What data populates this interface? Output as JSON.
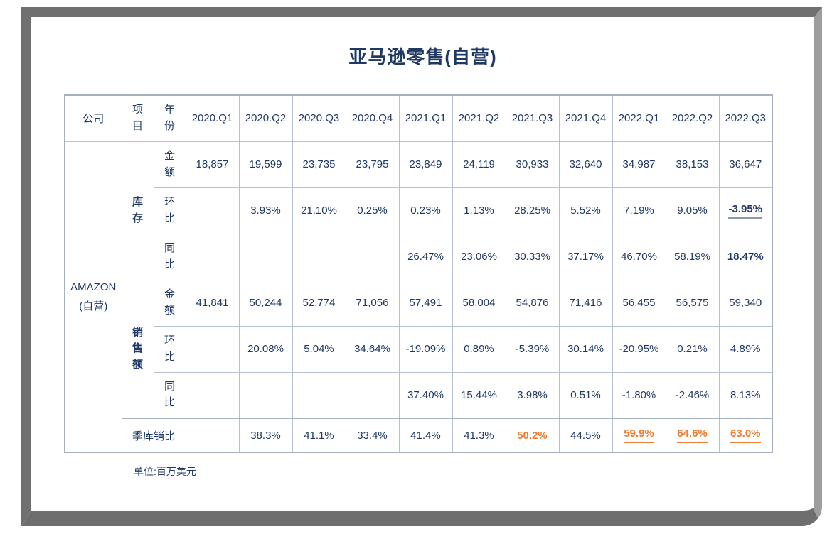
{
  "page": {
    "title": "亚马逊零售(自营)",
    "footnote": "单位:百万美元"
  },
  "colors": {
    "navy": "#1F3864",
    "orange": "#ED7D31",
    "grid": "#B6C1CF",
    "frame": "#707070"
  },
  "table": {
    "header": {
      "company": "公司",
      "item": "项目",
      "year": "年份",
      "quarters": [
        "2020.Q1",
        "2020.Q2",
        "2020.Q3",
        "2020.Q4",
        "2021.Q1",
        "2021.Q2",
        "2021.Q3",
        "2021.Q4",
        "2022.Q1",
        "2022.Q2",
        "2022.Q3"
      ]
    },
    "body": {
      "company": {
        "line1": "AMAZON",
        "line2": "(自营)"
      },
      "rows": [
        {
          "section": "库存",
          "label": "金额",
          "values": [
            "18,857",
            "19,599",
            "23,735",
            "23,795",
            "23,849",
            "24,119",
            "30,933",
            "32,640",
            "34,987",
            "38,153",
            "36,647"
          ]
        },
        {
          "label": "环比",
          "values": [
            "",
            "3.93%",
            "21.10%",
            "0.25%",
            "0.23%",
            "1.13%",
            "28.25%",
            "5.52%",
            "7.19%",
            "9.05%",
            "-3.95%"
          ],
          "styles": {
            "10": "bold u-gray"
          }
        },
        {
          "label": "同比",
          "values": [
            "",
            "",
            "",
            "",
            "26.47%",
            "23.06%",
            "30.33%",
            "37.17%",
            "46.70%",
            "58.19%",
            "18.47%"
          ],
          "styles": {
            "10": "bold"
          }
        },
        {
          "section": "销售额",
          "label": "金额",
          "values": [
            "41,841",
            "50,244",
            "52,774",
            "71,056",
            "57,491",
            "58,004",
            "54,876",
            "71,416",
            "56,455",
            "56,575",
            "59,340"
          ]
        },
        {
          "label": "环比",
          "values": [
            "",
            "20.08%",
            "5.04%",
            "34.64%",
            "-19.09%",
            "0.89%",
            "-5.39%",
            "30.14%",
            "-20.95%",
            "0.21%",
            "4.89%"
          ]
        },
        {
          "label": "同比",
          "values": [
            "",
            "",
            "",
            "",
            "37.40%",
            "15.44%",
            "3.98%",
            "0.51%",
            "-1.80%",
            "-2.46%",
            "8.13%"
          ]
        },
        {
          "ratio": true,
          "label": "季库销比",
          "values": [
            "",
            "38.3%",
            "41.1%",
            "33.4%",
            "41.4%",
            "41.3%",
            "50.2%",
            "44.5%",
            "59.9%",
            "64.6%",
            "63.0%"
          ],
          "styles": {
            "6": "orange bold",
            "8": "orange bold u-orange",
            "9": "orange bold u-orange",
            "10": "orange bold u-orange"
          }
        }
      ]
    }
  }
}
